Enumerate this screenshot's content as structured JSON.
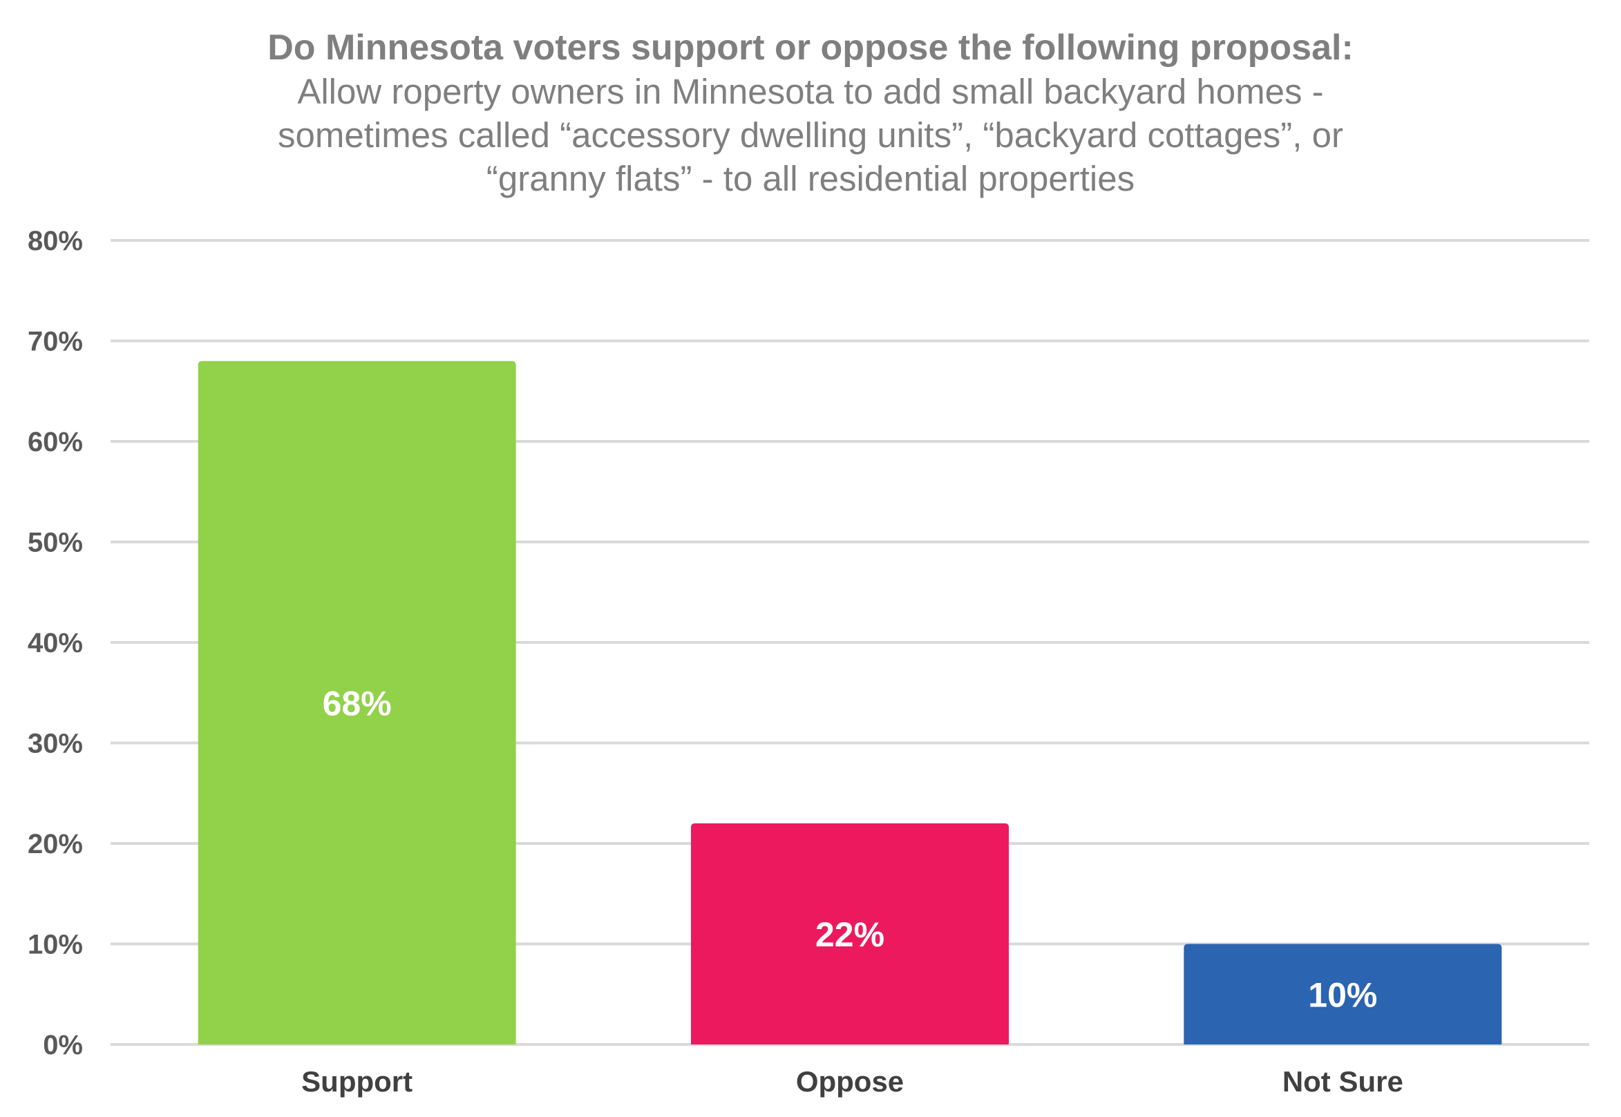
{
  "chart_data": {
    "type": "bar",
    "title": "Do Minnesota voters support or oppose the following proposal:",
    "subtitle_lines": [
      "Allow roperty owners in Minnesota to add small backyard homes -",
      "sometimes called “accessory dwelling units”, “backyard cottages”, or",
      "“granny flats” - to all residential properties"
    ],
    "categories": [
      "Support",
      "Oppose",
      "Not Sure"
    ],
    "values": [
      68,
      22,
      10
    ],
    "data_labels": [
      "68%",
      "22%",
      "10%"
    ],
    "bar_colors": [
      "#92d14a",
      "#ed195e",
      "#2b64b0"
    ],
    "ylim": [
      0,
      80
    ],
    "yticks": [
      0,
      10,
      20,
      30,
      40,
      50,
      60,
      70,
      80
    ],
    "ytick_labels": [
      "0%",
      "10%",
      "20%",
      "30%",
      "40%",
      "50%",
      "60%",
      "70%",
      "80%"
    ],
    "xlabel": "",
    "ylabel": "",
    "grid": true,
    "gridline_color": "#d9d9d9",
    "legend": "none"
  }
}
